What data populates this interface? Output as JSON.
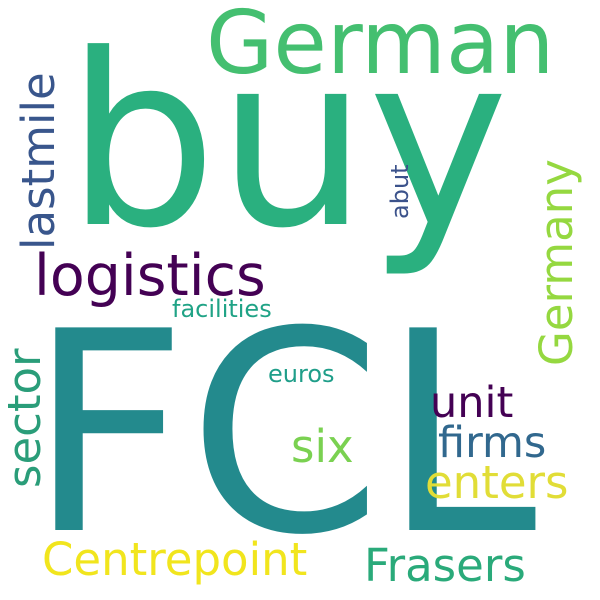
{
  "words": {
    "buy": {
      "text": "buy",
      "color": "#2ab07f"
    },
    "FCL": {
      "text": "FCL",
      "color": "#238a8d"
    },
    "German": {
      "text": "German",
      "color": "#44bf70"
    },
    "logistics": {
      "text": "logistics",
      "color": "#440154"
    },
    "lastmile": {
      "text": "lastmile",
      "color": "#39568c"
    },
    "facilities": {
      "text": "facilities",
      "color": "#20a386"
    },
    "euros": {
      "text": "euros",
      "color": "#1f9e89"
    },
    "abut": {
      "text": "abut",
      "color": "#3b528b"
    },
    "Germany": {
      "text": "Germany",
      "color": "#95d840"
    },
    "unit": {
      "text": "unit",
      "color": "#440154"
    },
    "firms": {
      "text": "firms",
      "color": "#31688e"
    },
    "six": {
      "text": "six",
      "color": "#7ad151"
    },
    "enters": {
      "text": "enters",
      "color": "#e1dd37"
    },
    "sector": {
      "text": "sector",
      "color": "#2a9d79"
    },
    "Centrepoint": {
      "text": "Centrepoint",
      "color": "#f1e51d"
    },
    "Frasers": {
      "text": "Frasers",
      "color": "#2aaa7a"
    }
  }
}
